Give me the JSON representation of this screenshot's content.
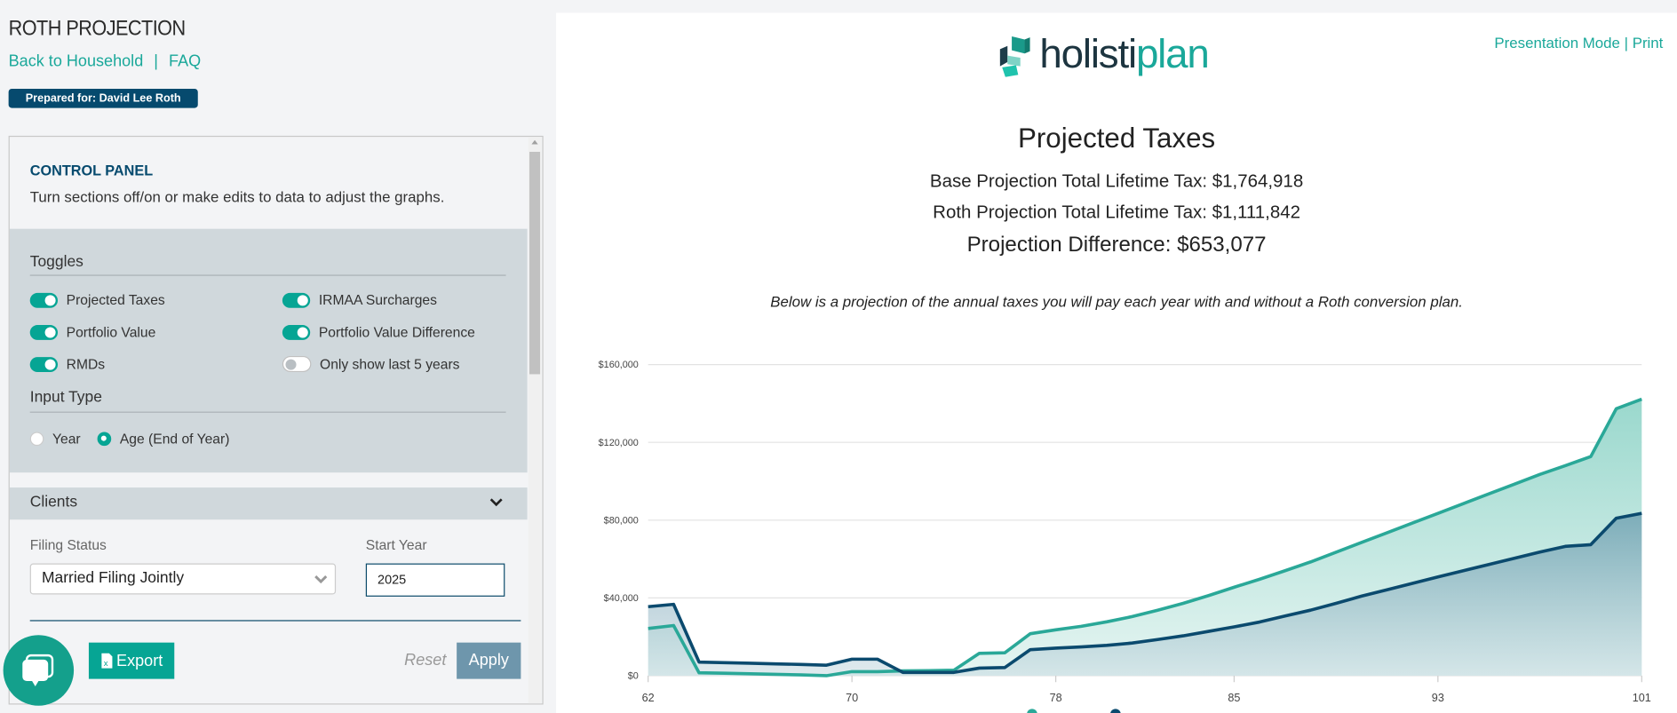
{
  "page": {
    "title": "ROTH PROJECTION",
    "links": {
      "back": "Back to Household",
      "separator": "|",
      "faq": "FAQ"
    },
    "prepared_for": "Prepared for: David Lee Roth"
  },
  "control_panel": {
    "title": "CONTROL PANEL",
    "description": "Turn sections off/on or make edits to data to adjust the graphs.",
    "toggles_header": "Toggles",
    "toggles": [
      {
        "label": "Projected Taxes",
        "on": true
      },
      {
        "label": "IRMAA Surcharges",
        "on": true
      },
      {
        "label": "Portfolio Value",
        "on": true
      },
      {
        "label": "Portfolio Value Difference",
        "on": true
      },
      {
        "label": "RMDs",
        "on": true
      },
      {
        "label": "Only show last 5 years",
        "on": false
      }
    ],
    "input_type_header": "Input Type",
    "input_type_options": [
      {
        "label": "Year",
        "selected": false
      },
      {
        "label": "Age (End of Year)",
        "selected": true
      }
    ],
    "clients_header": "Clients",
    "filing_status_label": "Filing Status",
    "filing_status_value": "Married Filing Jointly",
    "start_year_label": "Start Year",
    "start_year_value": "2025",
    "export_label": "Export",
    "reset_label": "Reset",
    "apply_label": "Apply"
  },
  "header": {
    "logo": {
      "part1": "holisti",
      "part2": "plan"
    },
    "presentation_mode": "Presentation Mode",
    "separator": "|",
    "print": "Print"
  },
  "summary": {
    "title": "Projected Taxes",
    "base_total": "Base Projection Total Lifetime Tax: $1,764,918",
    "roth_total": "Roth Projection Total Lifetime Tax: $1,111,842",
    "difference": "Projection Difference: $653,077",
    "note": "Below is a projection of the annual taxes you will pay each year with and without a Roth conversion plan."
  },
  "colors": {
    "accent": "#06a594",
    "navy": "#064a6e",
    "base_line": "#2aa898",
    "roth_line": "#0b4a6e"
  },
  "chart_data": {
    "type": "area",
    "x": [
      62,
      63,
      64,
      65,
      66,
      67,
      68,
      69,
      70,
      71,
      72,
      73,
      74,
      75,
      76,
      77,
      78,
      79,
      80,
      81,
      82,
      83,
      84,
      85,
      86,
      87,
      88,
      89,
      90,
      91,
      92,
      93,
      94,
      95,
      96,
      97,
      98,
      99,
      100,
      101
    ],
    "series": [
      {
        "color": "#2aa898",
        "values": [
          24300,
          25800,
          1500,
          1300,
          1000,
          700,
          400,
          0,
          2100,
          2100,
          2500,
          2600,
          2800,
          11500,
          11800,
          21600,
          23600,
          25400,
          27700,
          30400,
          33700,
          37200,
          41200,
          45500,
          49600,
          54000,
          58500,
          63500,
          68500,
          73500,
          78500,
          83500,
          88500,
          93500,
          98500,
          103500,
          108000,
          112700,
          137300,
          142200
        ]
      },
      {
        "color": "#0b4a6e",
        "values": [
          35500,
          36700,
          7000,
          6700,
          6400,
          6100,
          5800,
          5400,
          8500,
          8500,
          1700,
          1700,
          1700,
          3900,
          4200,
          13400,
          14200,
          14800,
          15600,
          16800,
          18600,
          20500,
          22800,
          25100,
          27600,
          30700,
          33700,
          37200,
          40900,
          44200,
          47500,
          50800,
          54000,
          57200,
          60400,
          63600,
          66500,
          67400,
          81000,
          83500
        ]
      }
    ],
    "yticks": [
      "$0",
      "$40,000",
      "$80,000",
      "$120,000",
      "$160,000"
    ],
    "ytick_values": [
      0,
      40000,
      80000,
      120000,
      160000
    ],
    "xticks": [
      "62",
      "70",
      "78",
      "85",
      "93",
      "101"
    ],
    "ylim": [
      0,
      160000
    ],
    "xlim": [
      62,
      101
    ],
    "grid": true,
    "legend": "bottom"
  }
}
